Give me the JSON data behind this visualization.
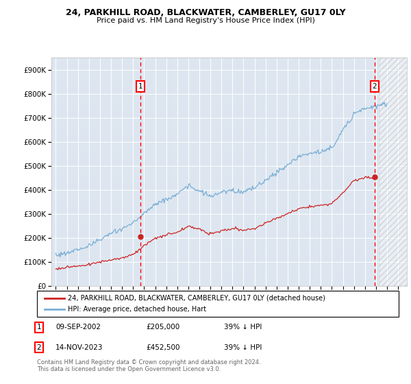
{
  "title1": "24, PARKHILL ROAD, BLACKWATER, CAMBERLEY, GU17 0LY",
  "title2": "Price paid vs. HM Land Registry's House Price Index (HPI)",
  "ylabel_ticks": [
    "£0",
    "£100K",
    "£200K",
    "£300K",
    "£400K",
    "£500K",
    "£600K",
    "£700K",
    "£800K",
    "£900K"
  ],
  "ytick_vals": [
    0,
    100000,
    200000,
    300000,
    400000,
    500000,
    600000,
    700000,
    800000,
    900000
  ],
  "ylim": [
    0,
    950000
  ],
  "xlim_start": 1994.6,
  "xlim_end": 2026.8,
  "bg_color": "#dde6f0",
  "hpi_color": "#7aaed6",
  "price_color": "#cc2222",
  "marker1_year": 2002.69,
  "marker1_price": 205000,
  "marker2_year": 2023.87,
  "marker2_price": 452500,
  "hatch_start": 2024.3,
  "legend_label_red": "24, PARKHILL ROAD, BLACKWATER, CAMBERLEY, GU17 0LY (detached house)",
  "legend_label_blue": "HPI: Average price, detached house, Hart",
  "note1_date": "09-SEP-2002",
  "note1_price": "£205,000",
  "note1_hpi": "39% ↓ HPI",
  "note2_date": "14-NOV-2023",
  "note2_price": "£452,500",
  "note2_hpi": "39% ↓ HPI",
  "footnote1": "Contains HM Land Registry data © Crown copyright and database right 2024.",
  "footnote2": "This data is licensed under the Open Government Licence v3.0.",
  "hpi_years": [
    1995,
    1996,
    1997,
    1998,
    1999,
    2000,
    2001,
    2002,
    2003,
    2004,
    2005,
    2006,
    2007,
    2008,
    2009,
    2010,
    2011,
    2012,
    2013,
    2014,
    2015,
    2016,
    2017,
    2018,
    2019,
    2020,
    2021,
    2022,
    2023,
    2024,
    2025
  ],
  "hpi_vals": [
    128000,
    138000,
    152000,
    168000,
    192000,
    218000,
    238000,
    262000,
    302000,
    342000,
    358000,
    382000,
    418000,
    395000,
    372000,
    388000,
    398000,
    390000,
    408000,
    442000,
    472000,
    502000,
    538000,
    552000,
    558000,
    572000,
    648000,
    718000,
    738000,
    750000,
    755000
  ],
  "price_years": [
    1995,
    1996,
    1997,
    1998,
    1999,
    2000,
    2001,
    2002,
    2003,
    2004,
    2005,
    2006,
    2007,
    2008,
    2009,
    2010,
    2011,
    2012,
    2013,
    2014,
    2015,
    2016,
    2017,
    2018,
    2019,
    2020,
    2021,
    2022,
    2023,
    2024
  ],
  "price_vals": [
    72000,
    78000,
    84000,
    90000,
    100000,
    108000,
    118000,
    132000,
    168000,
    198000,
    212000,
    225000,
    248000,
    238000,
    215000,
    230000,
    238000,
    232000,
    238000,
    262000,
    282000,
    302000,
    320000,
    332000,
    336000,
    342000,
    390000,
    438000,
    452500,
    448000
  ]
}
